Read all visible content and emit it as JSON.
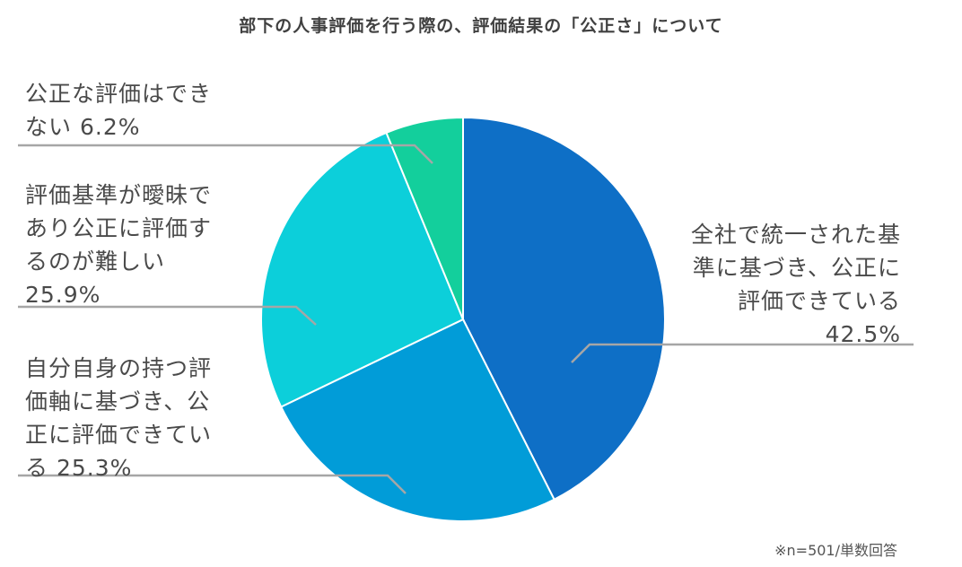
{
  "chart_data": {
    "type": "pie",
    "title": "部下の人事評価を行う際の、評価結果の「公正さ」について",
    "slices": [
      {
        "label": "全社で統一された基準に基づき、公正に評価できている",
        "label_lines": [
          "全社で統一された基",
          "準に基づき、公正に",
          "評価できている"
        ],
        "value_text": "42.5%",
        "value": 42.5,
        "color": "#0e6fc6"
      },
      {
        "label": "自分自身の持つ評価軸に基づき、公正に評価できている",
        "label_lines": [
          "自分自身の持つ評",
          "価軸に基づき、公",
          "正に評価できてい",
          "る"
        ],
        "value_text": "25.3%",
        "value": 25.3,
        "color": "#019cd8"
      },
      {
        "label": "評価基準が曖昧であり公正に評価するのが難しい",
        "label_lines": [
          "評価基準が曖昧で",
          "あり公正に評価す",
          "るのが難しい"
        ],
        "value_text": "25.9%",
        "value": 25.9,
        "color": "#0ccfda"
      },
      {
        "label": "公正な評価はできない",
        "label_lines": [
          "公正な評価はでき",
          "ない"
        ],
        "value_text": "6.2%",
        "value": 6.2,
        "color": "#13cf9c"
      }
    ],
    "legend": "none"
  },
  "note": "※n=501/単数回答"
}
